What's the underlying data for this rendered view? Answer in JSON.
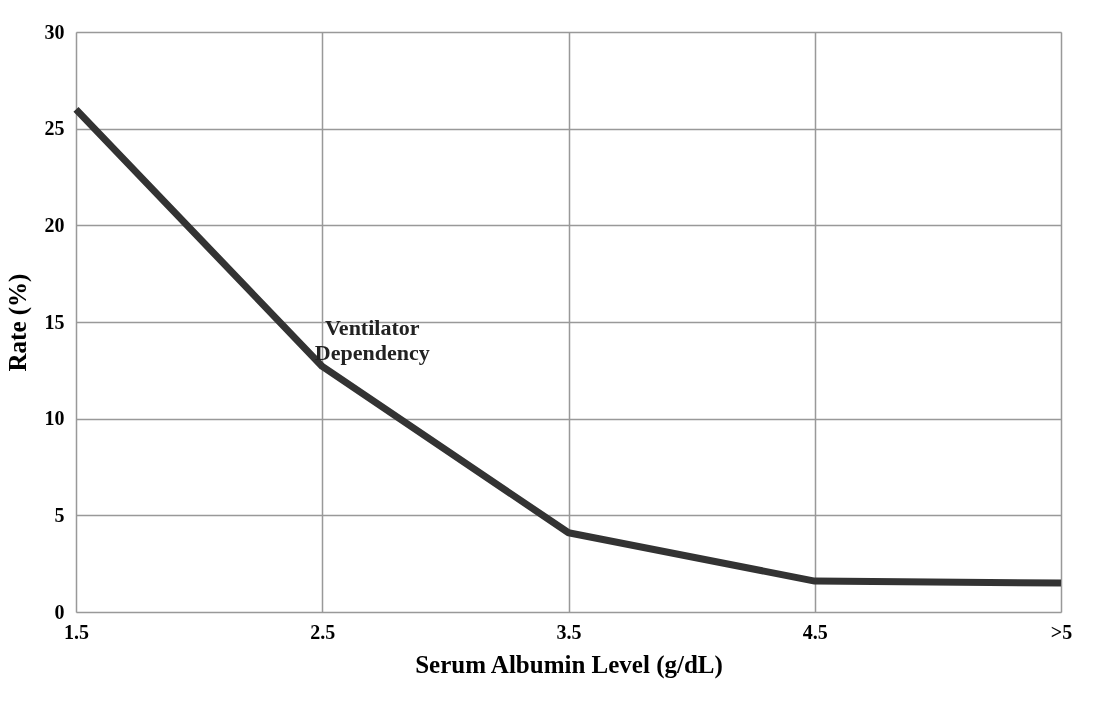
{
  "chart_data": {
    "type": "line",
    "xlabel": "Serum Albumin Level (g/dL)",
    "ylabel": "Rate (%)",
    "categories": [
      "1.5",
      "2.5",
      "3.5",
      "4.5",
      ">5"
    ],
    "series": [
      {
        "name": "Ventilator Dependency",
        "color": "#333333",
        "values": [
          26,
          12.7,
          4.1,
          1.6,
          1.5
        ]
      }
    ],
    "ylim": [
      0,
      30
    ],
    "yticks": [
      0,
      5,
      10,
      15,
      20,
      25,
      30
    ],
    "grid": true,
    "legend": false,
    "marker": "none",
    "line_style": "solid"
  }
}
